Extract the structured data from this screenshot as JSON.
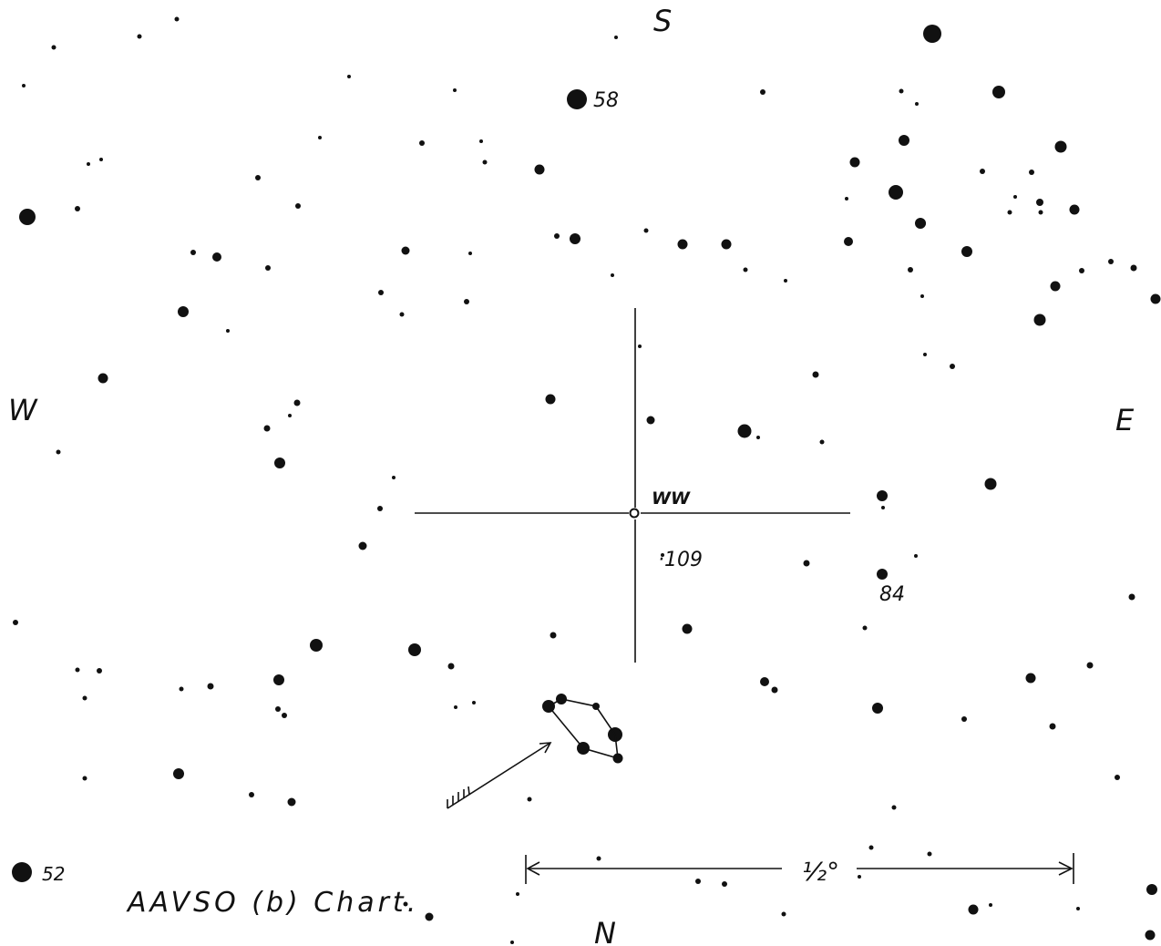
{
  "chart": {
    "directions": {
      "south": "S",
      "north": "N",
      "west": "W",
      "east": "E"
    },
    "variable_label": "WW",
    "comparison_labels": {
      "m58": "58",
      "m52": "52",
      "m109": "·109",
      "m84": "84"
    },
    "scale": {
      "label": "½°"
    },
    "title": "AAVSO (b) Chart.",
    "ink_color": "#111111"
  }
}
